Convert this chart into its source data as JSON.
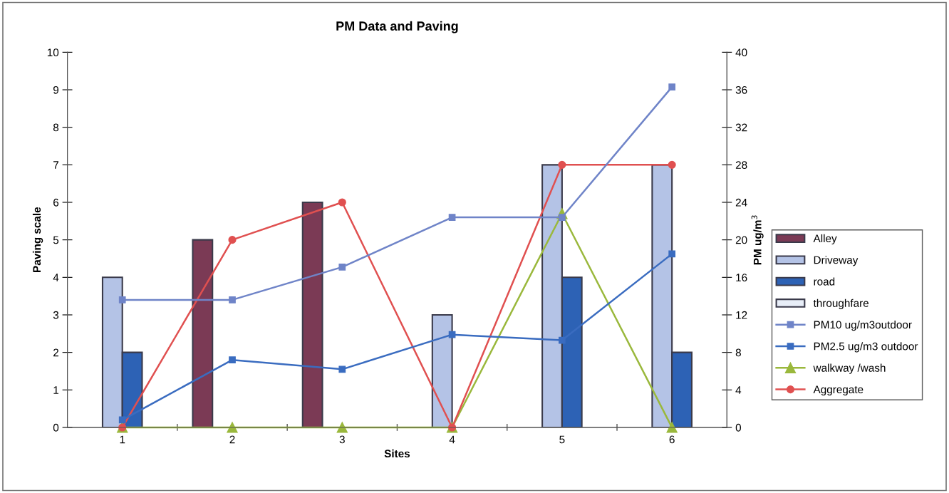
{
  "chart_data": {
    "type": "bar",
    "title": "PM Data and Paving",
    "xlabel": "Sites",
    "ylabel": "Paving scale",
    "y2label": "PM ug/m$^{3}$",
    "categories": [
      "1",
      "2",
      "3",
      "4",
      "5",
      "6"
    ],
    "series": [
      {
        "name": "Alley",
        "color": "#7b3a55",
        "values": [
          null,
          5,
          6,
          null,
          null,
          null
        ]
      },
      {
        "name": "Driveway",
        "color": "#b4c3e6",
        "values": [
          4,
          null,
          null,
          3,
          7,
          7
        ]
      },
      {
        "name": "road",
        "color": "#2d62b5",
        "values": [
          2,
          null,
          null,
          null,
          4,
          2
        ]
      },
      {
        "name": "throughfare",
        "color": "#e8eef8",
        "values": [
          null,
          null,
          null,
          null,
          null,
          null
        ]
      },
      {
        "name": "PM10 ug/m3outdoor",
        "type": "line",
        "axis": "y2",
        "marker": "square",
        "color": "#6f84c8",
        "values": [
          13.6,
          13.6,
          17.1,
          22.4,
          22.4,
          36.3
        ]
      },
      {
        "name": "PM2.5 ug/m3 outdoor",
        "type": "line",
        "axis": "y2",
        "marker": "square",
        "color": "#3a6cc0",
        "values": [
          0.8,
          7.2,
          6.2,
          9.9,
          9.3,
          18.5
        ]
      },
      {
        "name": "walkway /wash",
        "type": "line",
        "marker": "triangle",
        "color": "#9ab83c",
        "values": [
          0,
          0,
          0,
          0,
          5.7,
          0
        ]
      },
      {
        "name": "Aggregate",
        "type": "line",
        "marker": "circle",
        "color": "#e05050",
        "values": [
          0,
          5,
          6,
          0,
          7,
          7
        ]
      }
    ],
    "ylim": [
      0,
      10
    ],
    "yticks": [
      0,
      1,
      2,
      3,
      4,
      5,
      6,
      7,
      8,
      9,
      10
    ],
    "y2lim": [
      0,
      40
    ],
    "y2ticks": [
      0,
      4,
      8,
      12,
      16,
      20,
      24,
      28,
      32,
      36,
      40
    ],
    "grid": false,
    "legend": "right"
  }
}
